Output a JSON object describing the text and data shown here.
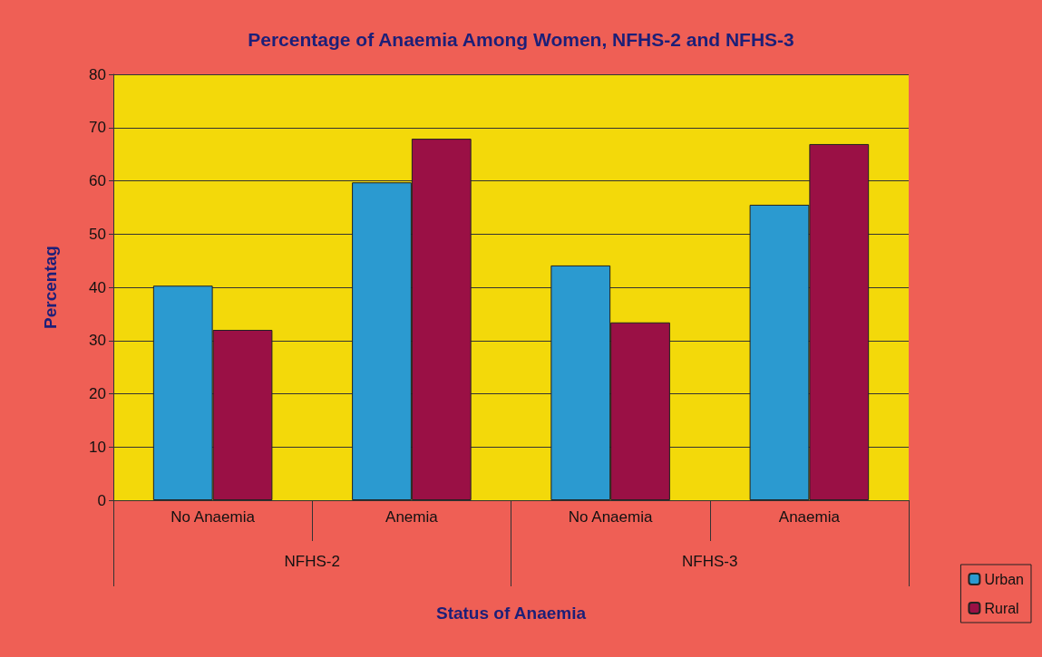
{
  "chart_data": {
    "type": "bar",
    "title": "Percentage of Anaemia Among Women, NFHS-2 and NFHS-3",
    "xlabel": "Status of Anaemia",
    "ylabel": "Percentag",
    "categories": [
      "No Anaemia",
      "Anemia",
      "No Anaemia",
      "Anaemia"
    ],
    "annotations": [
      "NFHS-2",
      "NFHS-3"
    ],
    "series": [
      {
        "name": "Urban",
        "color": "#2b9ad0",
        "values": [
          40.3,
          59.7,
          44.1,
          55.5
        ]
      },
      {
        "name": "Rural",
        "color": "#9a1045",
        "values": [
          32,
          67.9,
          33.4,
          66.9
        ]
      }
    ],
    "ylim": [
      0,
      80
    ],
    "yticks": [
      0,
      10,
      20,
      30,
      40,
      50,
      60,
      70,
      80
    ],
    "grid": "y",
    "legend": "bottom right"
  }
}
